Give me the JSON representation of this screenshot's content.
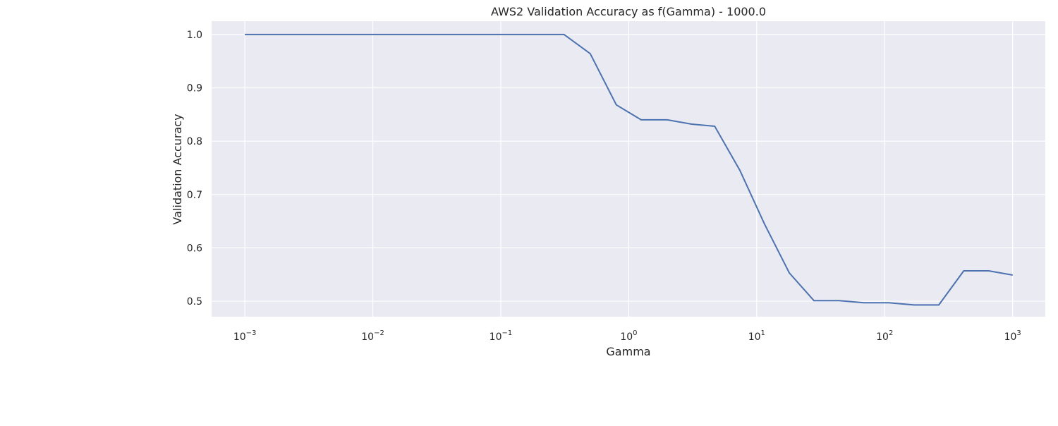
{
  "chart_data": {
    "type": "line",
    "title": "AWS2 Validation Accuracy as f(Gamma) - 1000.0",
    "xlabel": "Gamma",
    "ylabel": "Validation Accuracy",
    "x_scale": "log",
    "xlim": [
      0.00055,
      1800
    ],
    "ylim": [
      0.471,
      1.025
    ],
    "x_ticks": [
      {
        "value": 0.001,
        "base": "10",
        "exp": "−3"
      },
      {
        "value": 0.01,
        "base": "10",
        "exp": "−2"
      },
      {
        "value": 0.1,
        "base": "10",
        "exp": "−1"
      },
      {
        "value": 1,
        "base": "10",
        "exp": "0"
      },
      {
        "value": 10,
        "base": "10",
        "exp": "1"
      },
      {
        "value": 100,
        "base": "10",
        "exp": "2"
      },
      {
        "value": 1000,
        "base": "10",
        "exp": "3"
      }
    ],
    "y_ticks": [
      {
        "value": 0.5,
        "label": "0.5"
      },
      {
        "value": 0.6,
        "label": "0.6"
      },
      {
        "value": 0.7,
        "label": "0.7"
      },
      {
        "value": 0.8,
        "label": "0.8"
      },
      {
        "value": 0.9,
        "label": "0.9"
      },
      {
        "value": 1.0,
        "label": "1.0"
      }
    ],
    "grid": true,
    "colors": {
      "background": "#eaeaf2",
      "grid": "#ffffff",
      "line": "#4c72b0"
    },
    "series": [
      {
        "x": [
          0.001,
          0.0016,
          0.00256,
          0.00409,
          0.00655,
          0.0105,
          0.0168,
          0.0268,
          0.0429,
          0.0687,
          0.1099,
          0.1758,
          0.3125,
          0.5,
          0.8,
          1.25,
          2.0,
          3.1,
          4.7,
          7.4,
          11.5,
          18.0,
          28.0,
          44.0,
          69.0,
          108.0,
          170.0,
          265.0,
          415.0,
          650.0,
          1000.0
        ],
        "y": [
          1.0,
          1.0,
          1.0,
          1.0,
          1.0,
          1.0,
          1.0,
          1.0,
          1.0,
          1.0,
          1.0,
          1.0,
          1.0,
          0.964,
          0.868,
          0.84,
          0.84,
          0.832,
          0.828,
          0.745,
          0.645,
          0.553,
          0.501,
          0.501,
          0.497,
          0.497,
          0.493,
          0.493,
          0.557,
          0.557,
          0.549
        ]
      }
    ]
  }
}
